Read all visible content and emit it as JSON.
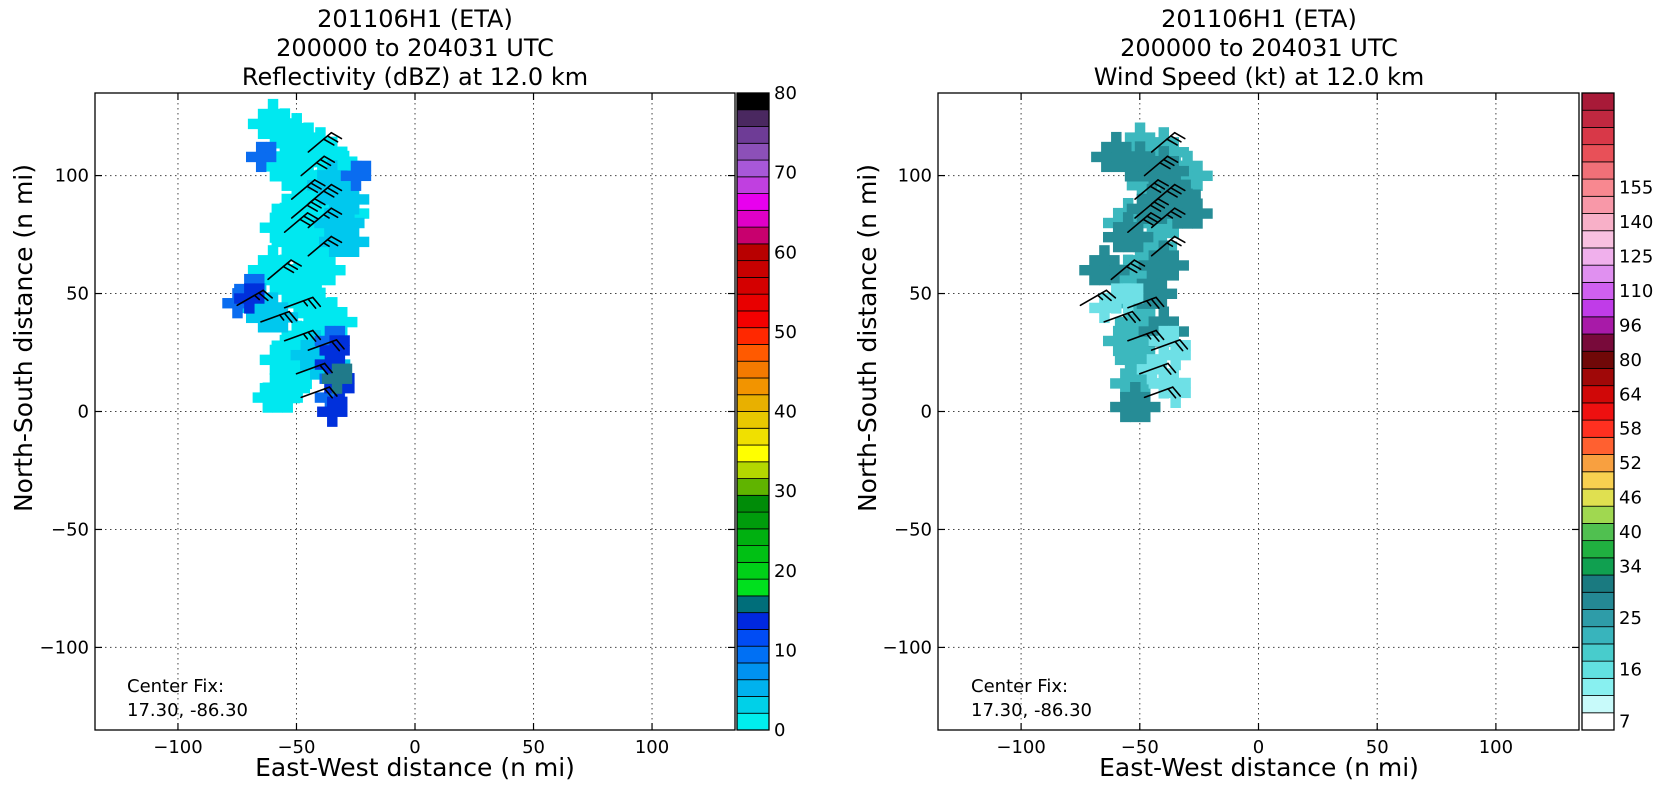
{
  "chart_data": [
    {
      "type": "heatmap",
      "title_lines": [
        "201106H1 (ETA)",
        "200000 to 204031 UTC",
        "Reflectivity (dBZ) at 12.0 km"
      ],
      "xlabel": "East-West distance (n mi)",
      "ylabel": "North-South distance (n mi)",
      "xlim": [
        -135,
        135
      ],
      "ylim": [
        -135,
        135
      ],
      "xticks": [
        -100,
        -50,
        0,
        50,
        100
      ],
      "yticks": [
        -100,
        -50,
        0,
        50,
        100
      ],
      "x_tick_labels": [
        "−100",
        "−50",
        "0",
        "50",
        "100"
      ],
      "y_tick_labels": [
        "−100",
        "−50",
        "0",
        "50",
        "100"
      ],
      "grid": true,
      "annotation": [
        "Center Fix:",
        "17.30, -86.30"
      ],
      "colorbar": {
        "min": 0,
        "max": 80,
        "tick_values": [
          0,
          10,
          20,
          30,
          40,
          50,
          60,
          70,
          80
        ],
        "tick_labels": [
          "0",
          "10",
          "20",
          "30",
          "40",
          "50",
          "60",
          "70",
          "80"
        ],
        "colors": [
          "#00eded",
          "#00d0e8",
          "#00b2ee",
          "#0092f0",
          "#0070f4",
          "#004cf4",
          "#0028e0",
          "#006e7a",
          "#00e01e",
          "#00d018",
          "#00c014",
          "#00b010",
          "#009c0c",
          "#008c08",
          "#60b400",
          "#b4d800",
          "#ffff00",
          "#f0e000",
          "#e8c800",
          "#e8b000",
          "#f29400",
          "#f47a00",
          "#ff5a00",
          "#ff2800",
          "#f40000",
          "#e80000",
          "#d40000",
          "#c80000",
          "#b80000",
          "#c8006e",
          "#e000c8",
          "#e800ee",
          "#c040e0",
          "#a858d8",
          "#8c50b8",
          "#6e3c96",
          "#4a2860",
          "#000000"
        ]
      },
      "field_color_key": {
        "background": "#00e8f0",
        "mid": "#00c8ee",
        "light": "#1ab8f2",
        "blue": "#0a6cf0",
        "deep_blue": "#0030dc",
        "teal": "#207a8a"
      },
      "echo_regions": [
        {
          "color": "#00e8f0",
          "cells": [
            [
              -60,
              122
            ],
            [
              -55,
              118
            ],
            [
              -50,
              116
            ],
            [
              -45,
              112
            ],
            [
              -40,
              110
            ],
            [
              -35,
              106
            ],
            [
              -30,
              100
            ],
            [
              -55,
              104
            ],
            [
              -50,
              100
            ],
            [
              -45,
              96
            ],
            [
              -40,
              92
            ],
            [
              -35,
              88
            ],
            [
              -30,
              84
            ],
            [
              -50,
              86
            ],
            [
              -45,
              82
            ],
            [
              -40,
              78
            ],
            [
              -35,
              74
            ],
            [
              -55,
              78
            ],
            [
              -50,
              72
            ],
            [
              -45,
              66
            ],
            [
              -40,
              60
            ],
            [
              -60,
              60
            ],
            [
              -55,
              56
            ],
            [
              -50,
              52
            ],
            [
              -45,
              46
            ],
            [
              -40,
              42
            ],
            [
              -35,
              38
            ],
            [
              -45,
              32
            ],
            [
              -50,
              28
            ],
            [
              -55,
              22
            ],
            [
              -50,
              16
            ],
            [
              -55,
              10
            ],
            [
              -58,
              6
            ]
          ]
        },
        {
          "color": "#00c8ee",
          "cells": [
            [
              -35,
              96
            ],
            [
              -30,
              90
            ],
            [
              -32,
              80
            ],
            [
              -30,
              72
            ],
            [
              -65,
              44
            ],
            [
              -60,
              40
            ],
            [
              -42,
              24
            ],
            [
              -38,
              20
            ]
          ]
        },
        {
          "color": "#0a6cf0",
          "cells": [
            [
              -65,
              108
            ],
            [
              -25,
              100
            ],
            [
              -70,
              52
            ],
            [
              -75,
              46
            ],
            [
              -36,
              30
            ],
            [
              -34,
              14
            ],
            [
              -36,
              6
            ]
          ]
        },
        {
          "color": "#0030dc",
          "cells": [
            [
              -70,
              48
            ],
            [
              -34,
              26
            ],
            [
              -36,
              20
            ],
            [
              -32,
              10
            ],
            [
              -35,
              0
            ]
          ]
        },
        {
          "color": "#207a8a",
          "cells": [
            [
              -33,
              14
            ]
          ]
        }
      ],
      "wind_barbs": [
        {
          "x": -45,
          "y": 110,
          "speed_kt": 30,
          "dir_deg": 230
        },
        {
          "x": -48,
          "y": 100,
          "speed_kt": 30,
          "dir_deg": 230
        },
        {
          "x": -52,
          "y": 90,
          "speed_kt": 30,
          "dir_deg": 230
        },
        {
          "x": -45,
          "y": 88,
          "speed_kt": 30,
          "dir_deg": 230
        },
        {
          "x": -52,
          "y": 82,
          "speed_kt": 30,
          "dir_deg": 230
        },
        {
          "x": -45,
          "y": 78,
          "speed_kt": 25,
          "dir_deg": 230
        },
        {
          "x": -55,
          "y": 76,
          "speed_kt": 30,
          "dir_deg": 230
        },
        {
          "x": -45,
          "y": 66,
          "speed_kt": 25,
          "dir_deg": 230
        },
        {
          "x": -62,
          "y": 56,
          "speed_kt": 30,
          "dir_deg": 230
        },
        {
          "x": -75,
          "y": 45,
          "speed_kt": 25,
          "dir_deg": 240
        },
        {
          "x": -55,
          "y": 44,
          "speed_kt": 25,
          "dir_deg": 250
        },
        {
          "x": -65,
          "y": 38,
          "speed_kt": 25,
          "dir_deg": 250
        },
        {
          "x": -55,
          "y": 30,
          "speed_kt": 25,
          "dir_deg": 250
        },
        {
          "x": -45,
          "y": 26,
          "speed_kt": 20,
          "dir_deg": 250
        },
        {
          "x": -50,
          "y": 16,
          "speed_kt": 20,
          "dir_deg": 250
        },
        {
          "x": -48,
          "y": 6,
          "speed_kt": 20,
          "dir_deg": 250
        }
      ]
    },
    {
      "type": "heatmap",
      "title_lines": [
        "201106H1 (ETA)",
        "200000 to 204031 UTC",
        "Wind Speed (kt) at 12.0 km"
      ],
      "xlabel": "East-West distance (n mi)",
      "ylabel": "North-South distance (n mi)",
      "xlim": [
        -135,
        135
      ],
      "ylim": [
        -135,
        135
      ],
      "xticks": [
        -100,
        -50,
        0,
        50,
        100
      ],
      "yticks": [
        -100,
        -50,
        0,
        50,
        100
      ],
      "x_tick_labels": [
        "−100",
        "−50",
        "0",
        "50",
        "100"
      ],
      "y_tick_labels": [
        "−100",
        "−50",
        "0",
        "50",
        "100"
      ],
      "grid": true,
      "annotation": [
        "Center Fix:",
        "17.30, -86.30"
      ],
      "colorbar": {
        "tick_labels": [
          "7",
          "16",
          "25",
          "34",
          "40",
          "46",
          "52",
          "58",
          "64",
          "80",
          "96",
          "110",
          "125",
          "140",
          "155"
        ],
        "tick_bin_index": [
          0,
          3,
          6,
          9,
          11,
          13,
          15,
          17,
          19,
          21,
          23,
          25,
          27,
          29,
          31
        ],
        "colors": [
          "#ffffff",
          "#c8fafa",
          "#88f0f0",
          "#62e0e0",
          "#48cccc",
          "#38b4bc",
          "#2e9ca8",
          "#248894",
          "#1a7a80",
          "#10a050",
          "#20b040",
          "#50c050",
          "#a0d850",
          "#e0e050",
          "#f8d050",
          "#f8a040",
          "#ff6030",
          "#ff3020",
          "#ee1010",
          "#d00808",
          "#a00808",
          "#700808",
          "#780a3a",
          "#a81aa8",
          "#c03ce8",
          "#d060f0",
          "#e090f0",
          "#f0b0ec",
          "#f8c0e0",
          "#f8b0c8",
          "#f898a8",
          "#f88890",
          "#f07078",
          "#e85058",
          "#d83848",
          "#c02840",
          "#a81a38"
        ]
      },
      "field_color_key": {
        "light": "#6ee0e6",
        "mid": "#3cb8be",
        "dark": "#268c96"
      },
      "echo_regions": [
        {
          "color": "#3cb8be",
          "cells": [
            [
              -50,
              112
            ],
            [
              -40,
              110
            ],
            [
              -35,
              100
            ],
            [
              -30,
              100
            ],
            [
              -45,
              96
            ],
            [
              -35,
              88
            ],
            [
              -40,
              80
            ],
            [
              -45,
              70
            ],
            [
              -55,
              80
            ],
            [
              -50,
              60
            ],
            [
              -55,
              56
            ],
            [
              -50,
              46
            ],
            [
              -50,
              38
            ],
            [
              -55,
              30
            ],
            [
              -50,
              22
            ],
            [
              -52,
              12
            ]
          ]
        },
        {
          "color": "#268c96",
          "cells": [
            [
              -60,
              108
            ],
            [
              -50,
              104
            ],
            [
              -40,
              102
            ],
            [
              -35,
              92
            ],
            [
              -45,
              86
            ],
            [
              -30,
              84
            ],
            [
              -55,
              74
            ],
            [
              -40,
              62
            ],
            [
              -65,
              60
            ],
            [
              -45,
              50
            ],
            [
              -40,
              34
            ],
            [
              -52,
              2
            ]
          ]
        },
        {
          "color": "#6ee0e6",
          "cells": [
            [
              -60,
              48
            ],
            [
              -65,
              44
            ],
            [
              -55,
              48
            ],
            [
              -40,
              30
            ],
            [
              -35,
              24
            ],
            [
              -45,
              18
            ],
            [
              -40,
              12
            ],
            [
              -35,
              8
            ]
          ]
        }
      ],
      "wind_barbs": [
        {
          "x": -45,
          "y": 110,
          "speed_kt": 30,
          "dir_deg": 230
        },
        {
          "x": -48,
          "y": 100,
          "speed_kt": 30,
          "dir_deg": 230
        },
        {
          "x": -52,
          "y": 90,
          "speed_kt": 30,
          "dir_deg": 230
        },
        {
          "x": -45,
          "y": 88,
          "speed_kt": 30,
          "dir_deg": 230
        },
        {
          "x": -52,
          "y": 82,
          "speed_kt": 30,
          "dir_deg": 230
        },
        {
          "x": -45,
          "y": 78,
          "speed_kt": 25,
          "dir_deg": 230
        },
        {
          "x": -55,
          "y": 76,
          "speed_kt": 30,
          "dir_deg": 230
        },
        {
          "x": -45,
          "y": 66,
          "speed_kt": 25,
          "dir_deg": 230
        },
        {
          "x": -62,
          "y": 56,
          "speed_kt": 30,
          "dir_deg": 230
        },
        {
          "x": -75,
          "y": 45,
          "speed_kt": 25,
          "dir_deg": 240
        },
        {
          "x": -55,
          "y": 44,
          "speed_kt": 25,
          "dir_deg": 250
        },
        {
          "x": -65,
          "y": 38,
          "speed_kt": 25,
          "dir_deg": 250
        },
        {
          "x": -55,
          "y": 30,
          "speed_kt": 25,
          "dir_deg": 250
        },
        {
          "x": -45,
          "y": 26,
          "speed_kt": 20,
          "dir_deg": 250
        },
        {
          "x": -50,
          "y": 16,
          "speed_kt": 20,
          "dir_deg": 250
        },
        {
          "x": -48,
          "y": 6,
          "speed_kt": 20,
          "dir_deg": 250
        }
      ]
    }
  ]
}
